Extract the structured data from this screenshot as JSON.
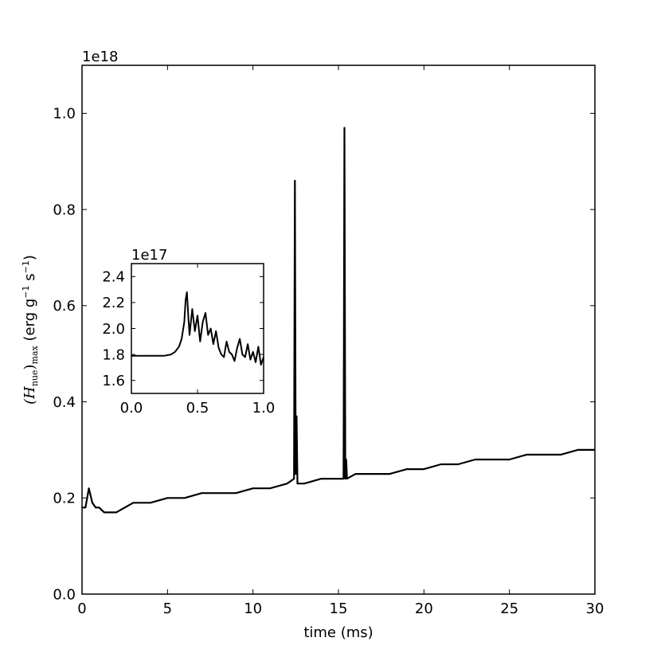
{
  "chart_data": [
    {
      "type": "line",
      "xlabel": "time (ms)",
      "ylabel_main": "(H",
      "ylabel_sub": "nue",
      "ylabel_mid": ")",
      "ylabel_sub2": "max",
      "ylabel_units_pre": " (erg g",
      "ylabel_exp1": "−1",
      "ylabel_units_mid": " s",
      "ylabel_exp2": "−1",
      "ylabel_units_post": ")",
      "offset_text": "1e18",
      "xlim": [
        0,
        30
      ],
      "ylim": [
        0,
        1.1
      ],
      "xticks": [
        0,
        5,
        10,
        15,
        20,
        25,
        30
      ],
      "xtick_labels": [
        "0",
        "5",
        "10",
        "15",
        "20",
        "25",
        "30"
      ],
      "yticks": [
        0.0,
        0.2,
        0.4,
        0.6,
        0.8,
        1.0
      ],
      "ytick_labels": [
        "0.0",
        "0.2",
        "0.4",
        "0.6",
        "0.8",
        "1.0"
      ],
      "series_color": "#000000",
      "x": [
        0.0,
        0.2,
        0.4,
        0.6,
        0.8,
        1.0,
        1.3,
        1.6,
        2.0,
        2.5,
        3.0,
        3.5,
        4.0,
        5.0,
        6.0,
        7.0,
        8.0,
        9.0,
        10.0,
        11.0,
        12.0,
        12.4,
        12.45,
        12.5,
        12.55,
        12.6,
        13.0,
        14.0,
        15.0,
        15.3,
        15.35,
        15.4,
        15.45,
        15.5,
        16.0,
        17.0,
        18.0,
        19.0,
        20.0,
        21.0,
        22.0,
        23.0,
        24.0,
        25.0,
        26.0,
        27.0,
        28.0,
        29.0,
        30.0
      ],
      "y": [
        0.18,
        0.18,
        0.22,
        0.19,
        0.18,
        0.18,
        0.17,
        0.17,
        0.17,
        0.18,
        0.19,
        0.19,
        0.19,
        0.2,
        0.2,
        0.21,
        0.21,
        0.21,
        0.22,
        0.22,
        0.23,
        0.24,
        0.86,
        0.25,
        0.37,
        0.23,
        0.23,
        0.24,
        0.24,
        0.24,
        0.97,
        0.24,
        0.28,
        0.24,
        0.25,
        0.25,
        0.25,
        0.26,
        0.26,
        0.27,
        0.27,
        0.28,
        0.28,
        0.28,
        0.29,
        0.29,
        0.29,
        0.3,
        0.3
      ]
    },
    {
      "type": "line",
      "offset_text": "1e17",
      "xlim": [
        0,
        1
      ],
      "ylim": [
        1.5,
        2.5
      ],
      "xticks": [
        0.0,
        0.5,
        1.0
      ],
      "xtick_labels": [
        "0.0",
        "0.5",
        "1.0"
      ],
      "yticks": [
        1.6,
        1.8,
        2.0,
        2.2,
        2.4
      ],
      "ytick_labels": [
        "1.6",
        "1.8",
        "2.0",
        "2.2",
        "2.4"
      ],
      "series_color": "#000000",
      "x": [
        0.0,
        0.05,
        0.1,
        0.15,
        0.2,
        0.25,
        0.3,
        0.33,
        0.36,
        0.38,
        0.4,
        0.41,
        0.42,
        0.43,
        0.44,
        0.46,
        0.48,
        0.5,
        0.52,
        0.54,
        0.56,
        0.58,
        0.6,
        0.62,
        0.64,
        0.66,
        0.68,
        0.7,
        0.72,
        0.74,
        0.76,
        0.78,
        0.8,
        0.82,
        0.84,
        0.86,
        0.88,
        0.9,
        0.92,
        0.94,
        0.96,
        0.98,
        1.0
      ],
      "y": [
        1.79,
        1.79,
        1.79,
        1.79,
        1.79,
        1.79,
        1.8,
        1.82,
        1.86,
        1.92,
        2.05,
        2.22,
        2.28,
        2.1,
        1.95,
        2.15,
        1.98,
        2.1,
        1.9,
        2.05,
        2.12,
        1.95,
        2.0,
        1.88,
        1.98,
        1.85,
        1.8,
        1.78,
        1.9,
        1.82,
        1.8,
        1.75,
        1.85,
        1.92,
        1.8,
        1.78,
        1.88,
        1.76,
        1.82,
        1.74,
        1.86,
        1.72,
        1.78
      ]
    }
  ]
}
